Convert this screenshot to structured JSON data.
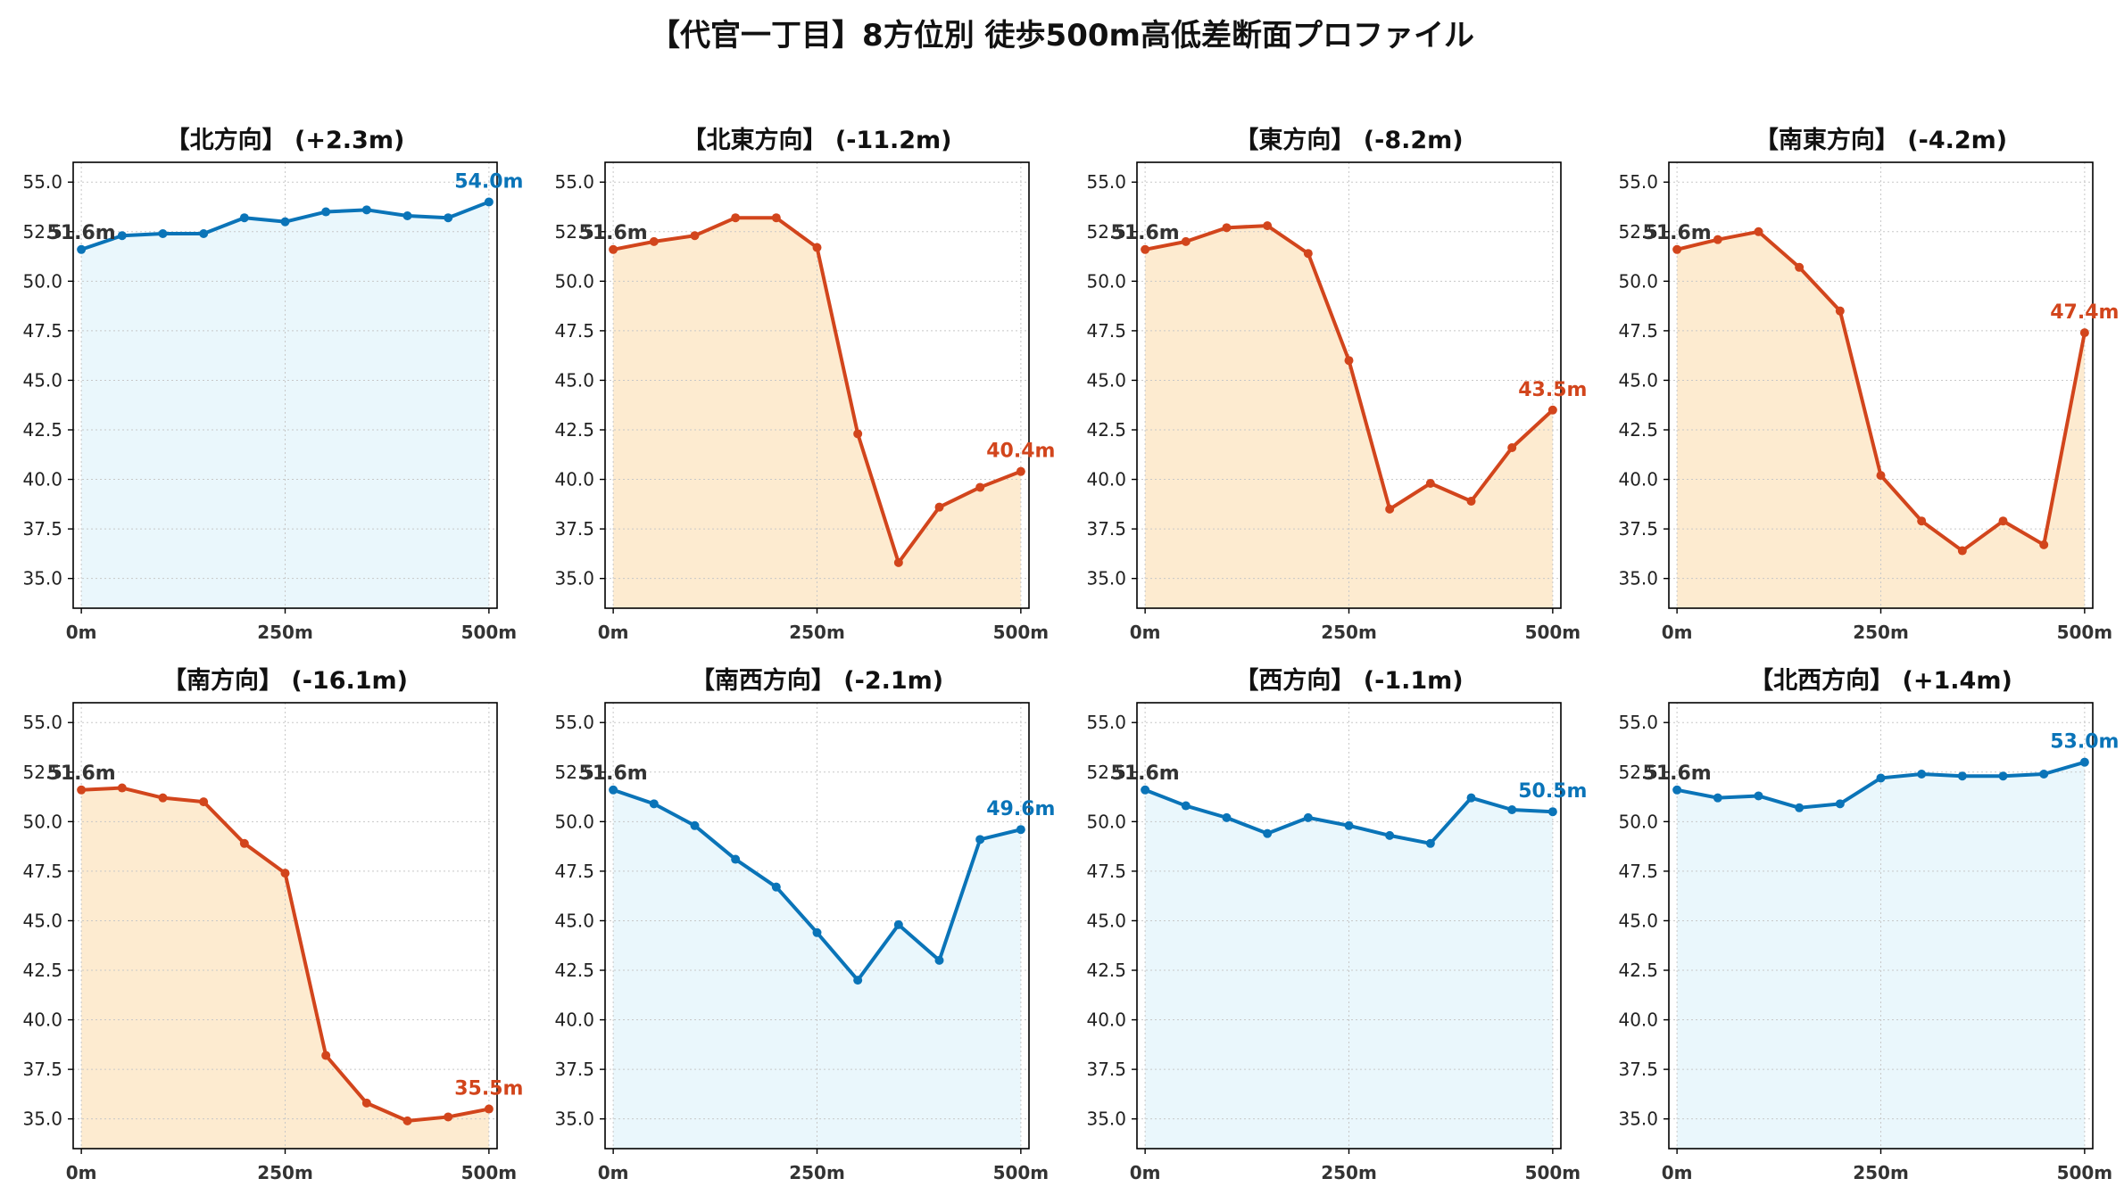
{
  "title": "【代官一丁目】8方位別 徒歩500m高低差断面プロファイル",
  "colors": {
    "up_line": "#0a74b8",
    "up_fill": "#eaf7fc",
    "down_line": "#d2451c",
    "down_fill": "#fdebd0",
    "start_label": "#333333"
  },
  "chart_data": [
    {
      "type": "area",
      "title": "【北方向】 (+2.3m)",
      "trend": "up",
      "x": [
        0,
        50,
        100,
        150,
        200,
        250,
        300,
        350,
        400,
        450,
        500
      ],
      "y": [
        51.6,
        52.3,
        52.4,
        52.4,
        53.2,
        53.0,
        53.5,
        53.6,
        53.3,
        53.2,
        54.0
      ],
      "start_label": "51.6m",
      "end_label": "54.0m",
      "xticks": [
        "0m",
        "250m",
        "500m"
      ],
      "yticks": [
        "35.0",
        "37.5",
        "40.0",
        "42.5",
        "45.0",
        "47.5",
        "50.0",
        "52.5",
        "55.0"
      ],
      "ylim": [
        33.5,
        56.0
      ],
      "grid": true
    },
    {
      "type": "area",
      "title": "【北東方向】 (-11.2m)",
      "trend": "down",
      "x": [
        0,
        50,
        100,
        150,
        200,
        250,
        300,
        350,
        400,
        450,
        500
      ],
      "y": [
        51.6,
        52.0,
        52.3,
        53.2,
        53.2,
        51.7,
        42.3,
        35.8,
        38.6,
        39.6,
        40.4
      ],
      "start_label": "51.6m",
      "end_label": "40.4m",
      "xticks": [
        "0m",
        "250m",
        "500m"
      ],
      "yticks": [
        "35.0",
        "37.5",
        "40.0",
        "42.5",
        "45.0",
        "47.5",
        "50.0",
        "52.5",
        "55.0"
      ],
      "ylim": [
        33.5,
        56.0
      ],
      "grid": true
    },
    {
      "type": "area",
      "title": "【東方向】 (-8.2m)",
      "trend": "down",
      "x": [
        0,
        50,
        100,
        150,
        200,
        250,
        300,
        350,
        400,
        450,
        500
      ],
      "y": [
        51.6,
        52.0,
        52.7,
        52.8,
        51.4,
        46.0,
        38.5,
        39.8,
        38.9,
        41.6,
        43.5
      ],
      "start_label": "51.6m",
      "end_label": "43.5m",
      "xticks": [
        "0m",
        "250m",
        "500m"
      ],
      "yticks": [
        "35.0",
        "37.5",
        "40.0",
        "42.5",
        "45.0",
        "47.5",
        "50.0",
        "52.5",
        "55.0"
      ],
      "ylim": [
        33.5,
        56.0
      ],
      "grid": true
    },
    {
      "type": "area",
      "title": "【南東方向】 (-4.2m)",
      "trend": "down",
      "x": [
        0,
        50,
        100,
        150,
        200,
        250,
        300,
        350,
        400,
        450,
        500
      ],
      "y": [
        51.6,
        52.1,
        52.5,
        50.7,
        48.5,
        40.2,
        37.9,
        36.4,
        37.9,
        36.7,
        47.4
      ],
      "start_label": "51.6m",
      "end_label": "47.4m",
      "xticks": [
        "0m",
        "250m",
        "500m"
      ],
      "yticks": [
        "35.0",
        "37.5",
        "40.0",
        "42.5",
        "45.0",
        "47.5",
        "50.0",
        "52.5",
        "55.0"
      ],
      "ylim": [
        33.5,
        56.0
      ],
      "grid": true
    },
    {
      "type": "area",
      "title": "【南方向】 (-16.1m)",
      "trend": "down",
      "x": [
        0,
        50,
        100,
        150,
        200,
        250,
        300,
        350,
        400,
        450,
        500
      ],
      "y": [
        51.6,
        51.7,
        51.2,
        51.0,
        48.9,
        47.4,
        38.2,
        35.8,
        34.9,
        35.1,
        35.5
      ],
      "start_label": "51.6m",
      "end_label": "35.5m",
      "xticks": [
        "0m",
        "250m",
        "500m"
      ],
      "yticks": [
        "35.0",
        "37.5",
        "40.0",
        "42.5",
        "45.0",
        "47.5",
        "50.0",
        "52.5",
        "55.0"
      ],
      "ylim": [
        33.5,
        56.0
      ],
      "grid": true
    },
    {
      "type": "area",
      "title": "【南西方向】 (-2.1m)",
      "trend": "up",
      "x": [
        0,
        50,
        100,
        150,
        200,
        250,
        300,
        350,
        400,
        450,
        500
      ],
      "y": [
        51.6,
        50.9,
        49.8,
        48.1,
        46.7,
        44.4,
        42.0,
        44.8,
        43.0,
        49.1,
        49.6
      ],
      "start_label": "51.6m",
      "end_label": "49.6m",
      "xticks": [
        "0m",
        "250m",
        "500m"
      ],
      "yticks": [
        "35.0",
        "37.5",
        "40.0",
        "42.5",
        "45.0",
        "47.5",
        "50.0",
        "52.5",
        "55.0"
      ],
      "ylim": [
        33.5,
        56.0
      ],
      "grid": true
    },
    {
      "type": "area",
      "title": "【西方向】 (-1.1m)",
      "trend": "up",
      "x": [
        0,
        50,
        100,
        150,
        200,
        250,
        300,
        350,
        400,
        450,
        500
      ],
      "y": [
        51.6,
        50.8,
        50.2,
        49.4,
        50.2,
        49.8,
        49.3,
        48.9,
        51.2,
        50.6,
        50.5
      ],
      "start_label": "51.6m",
      "end_label": "50.5m",
      "xticks": [
        "0m",
        "250m",
        "500m"
      ],
      "yticks": [
        "35.0",
        "37.5",
        "40.0",
        "42.5",
        "45.0",
        "47.5",
        "50.0",
        "52.5",
        "55.0"
      ],
      "ylim": [
        33.5,
        56.0
      ],
      "grid": true
    },
    {
      "type": "area",
      "title": "【北西方向】 (+1.4m)",
      "trend": "up",
      "x": [
        0,
        50,
        100,
        150,
        200,
        250,
        300,
        350,
        400,
        450,
        500
      ],
      "y": [
        51.6,
        51.2,
        51.3,
        50.7,
        50.9,
        52.2,
        52.4,
        52.3,
        52.3,
        52.4,
        53.0
      ],
      "start_label": "51.6m",
      "end_label": "53.0m",
      "xticks": [
        "0m",
        "250m",
        "500m"
      ],
      "yticks": [
        "35.0",
        "37.5",
        "40.0",
        "42.5",
        "45.0",
        "47.5",
        "50.0",
        "52.5",
        "55.0"
      ],
      "ylim": [
        33.5,
        56.0
      ],
      "grid": true
    }
  ]
}
